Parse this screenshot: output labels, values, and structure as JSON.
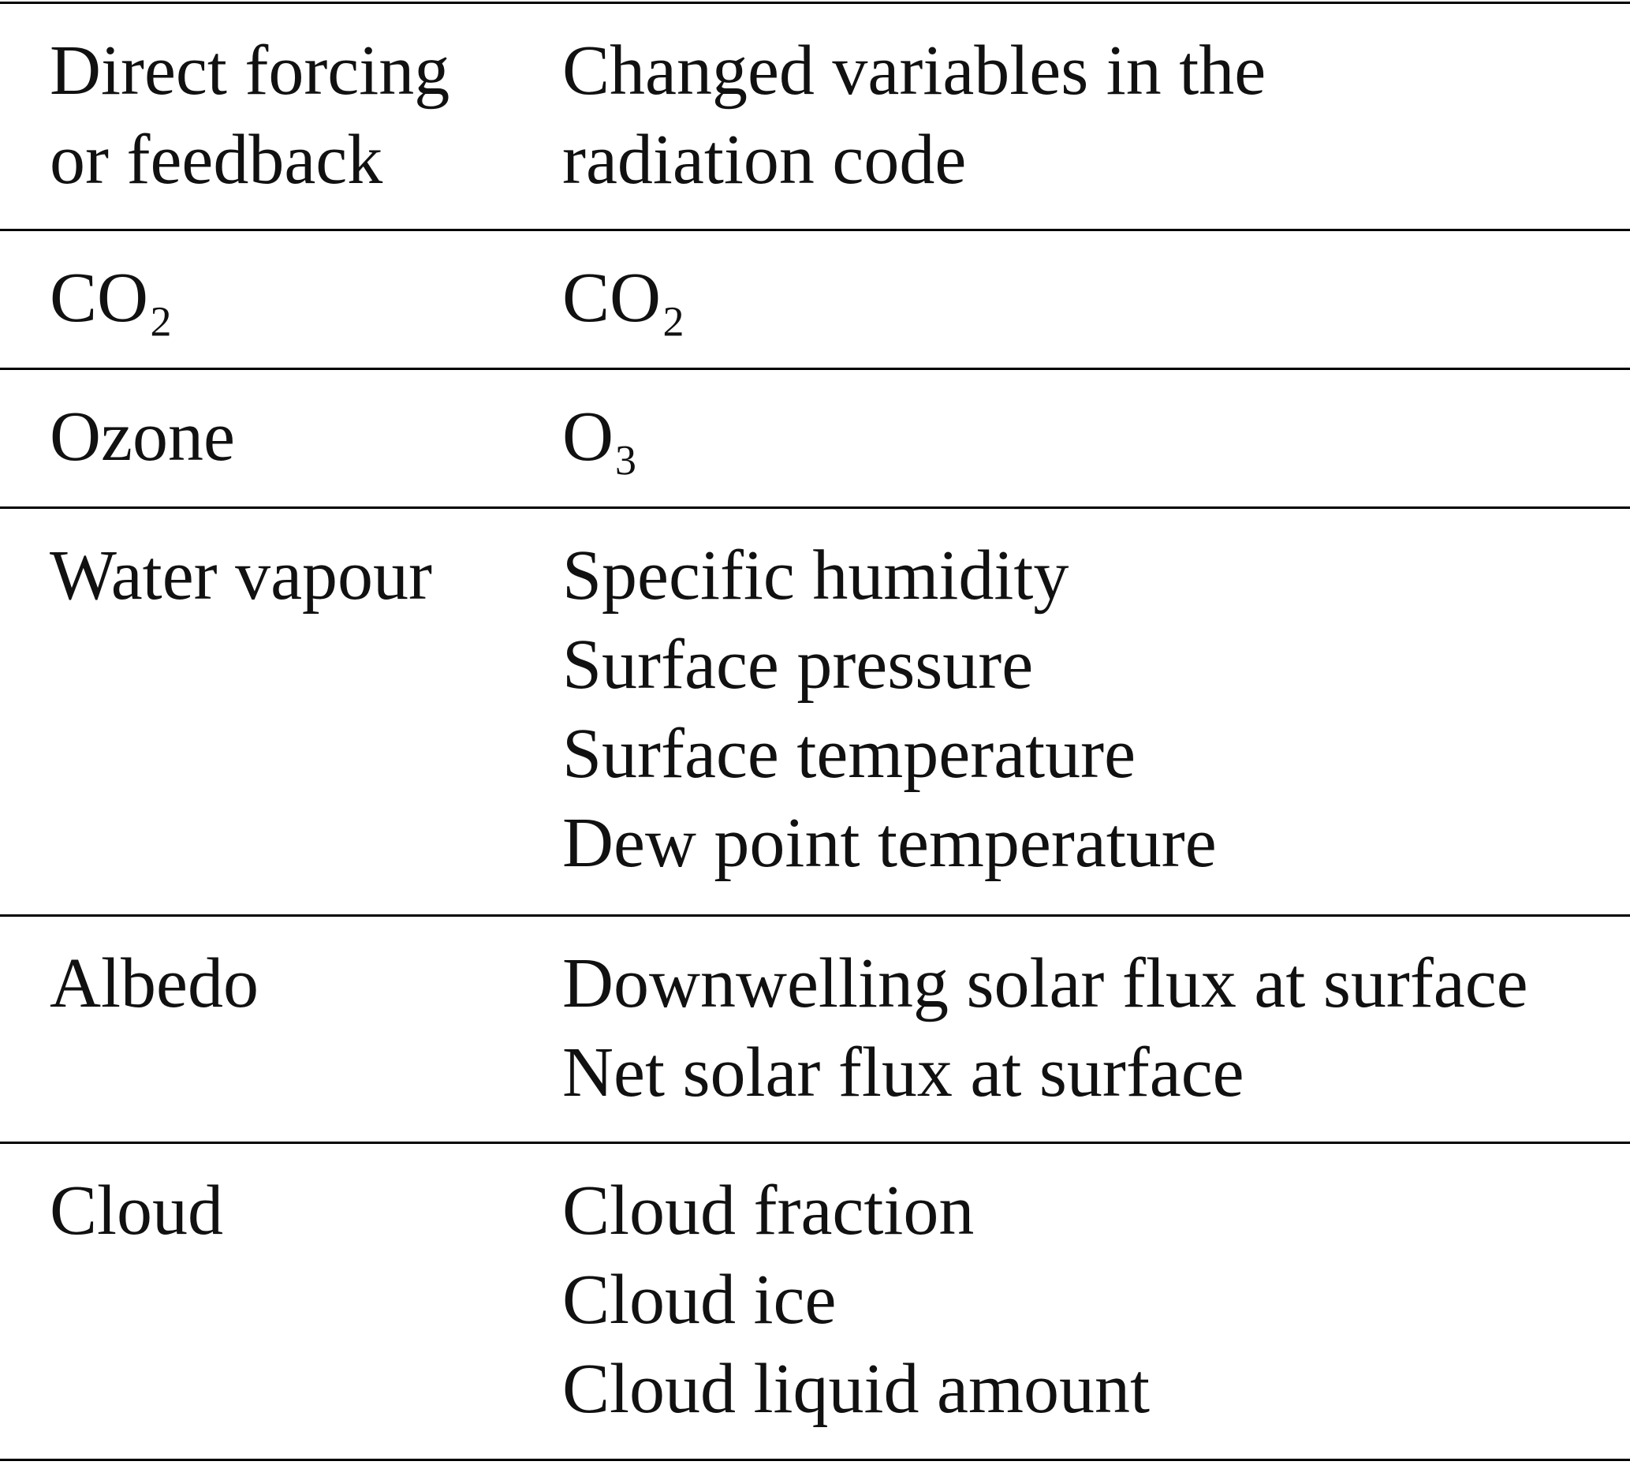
{
  "table": {
    "header": [
      "Direct forcing or feedback",
      "Changed variables in the radiation code"
    ],
    "rows": [
      {
        "label": "CO₂",
        "variables": [
          "CO₂"
        ]
      },
      {
        "label": "Ozone",
        "variables": [
          "O₃"
        ]
      },
      {
        "label": "Water vapour",
        "variables": [
          "Specific humidity",
          "Surface pressure",
          "Surface temperature",
          "Dew point temperature"
        ]
      },
      {
        "label": "Albedo",
        "variables": [
          "Downwelling solar flux at surface",
          "Net solar flux at surface"
        ]
      },
      {
        "label": "Cloud",
        "variables": [
          "Cloud fraction",
          "Cloud ice",
          "Cloud liquid amount"
        ]
      }
    ]
  }
}
